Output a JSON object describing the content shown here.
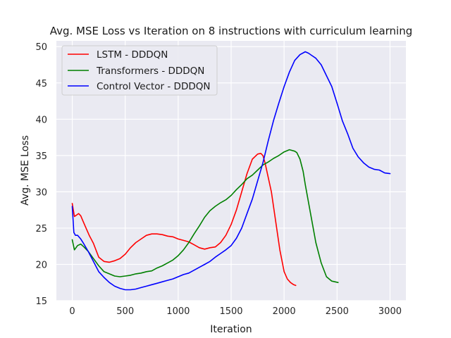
{
  "chart_data": {
    "type": "line",
    "title": "Avg. MSE Loss vs Iteration on 8 instructions with curriculum learning",
    "xlabel": "Iteration",
    "ylabel": "Avg. MSE Loss",
    "xlim": [
      -150,
      3150
    ],
    "ylim": [
      15,
      50.8
    ],
    "xticks": [
      0,
      500,
      1000,
      1500,
      2000,
      2500,
      3000
    ],
    "yticks": [
      15,
      20,
      25,
      30,
      35,
      40,
      45,
      50
    ],
    "grid": true,
    "legend_position": "top-left",
    "series": [
      {
        "name": "LSTM - DDDQN",
        "color": "#ff0000",
        "x": [
          0,
          20,
          40,
          60,
          80,
          100,
          130,
          160,
          200,
          250,
          300,
          350,
          400,
          450,
          500,
          550,
          600,
          650,
          700,
          750,
          800,
          850,
          900,
          950,
          1000,
          1050,
          1100,
          1150,
          1200,
          1250,
          1300,
          1350,
          1400,
          1450,
          1500,
          1550,
          1600,
          1650,
          1700,
          1750,
          1780,
          1800,
          1820,
          1850,
          1880,
          1900,
          1930,
          1960,
          2000,
          2030,
          2060,
          2090,
          2110
        ],
        "y": [
          28.4,
          26.6,
          26.8,
          27.0,
          26.7,
          26.0,
          25.0,
          24.0,
          22.9,
          21.0,
          20.4,
          20.3,
          20.5,
          20.8,
          21.4,
          22.3,
          23.0,
          23.5,
          24.0,
          24.2,
          24.2,
          24.1,
          23.9,
          23.8,
          23.5,
          23.3,
          23.1,
          22.7,
          22.3,
          22.1,
          22.3,
          22.4,
          23.0,
          24.0,
          25.5,
          27.5,
          30.0,
          32.5,
          34.5,
          35.2,
          35.3,
          35.0,
          34.0,
          32.0,
          30.0,
          28.0,
          25.0,
          22.0,
          19.0,
          18.0,
          17.5,
          17.2,
          17.1
        ]
      },
      {
        "name": "Transformers - DDDQN",
        "color": "#008000",
        "x": [
          0,
          20,
          50,
          80,
          110,
          150,
          200,
          250,
          300,
          350,
          400,
          450,
          500,
          550,
          600,
          650,
          700,
          750,
          800,
          850,
          900,
          950,
          1000,
          1050,
          1100,
          1150,
          1200,
          1250,
          1300,
          1350,
          1400,
          1450,
          1500,
          1550,
          1600,
          1650,
          1700,
          1750,
          1800,
          1850,
          1900,
          1950,
          2000,
          2050,
          2100,
          2120,
          2150,
          2180,
          2200,
          2250,
          2300,
          2350,
          2400,
          2450,
          2480,
          2510
        ],
        "y": [
          23.4,
          22.0,
          22.6,
          22.8,
          22.4,
          21.8,
          20.8,
          19.8,
          19.0,
          18.7,
          18.4,
          18.3,
          18.4,
          18.5,
          18.7,
          18.8,
          19.0,
          19.1,
          19.5,
          19.8,
          20.2,
          20.6,
          21.2,
          22.0,
          23.0,
          24.2,
          25.3,
          26.5,
          27.4,
          28.0,
          28.5,
          28.9,
          29.5,
          30.3,
          31.0,
          31.8,
          32.3,
          33.0,
          33.7,
          34.1,
          34.6,
          35.0,
          35.5,
          35.8,
          35.6,
          35.4,
          34.5,
          32.8,
          31.0,
          27.0,
          23.0,
          20.2,
          18.3,
          17.7,
          17.6,
          17.5
        ]
      },
      {
        "name": "Control Vector - DDDQN",
        "color": "#0000ff",
        "x": [
          0,
          15,
          30,
          50,
          80,
          110,
          150,
          200,
          250,
          300,
          350,
          400,
          450,
          500,
          550,
          600,
          650,
          700,
          750,
          800,
          850,
          900,
          950,
          1000,
          1050,
          1100,
          1150,
          1200,
          1250,
          1300,
          1350,
          1400,
          1450,
          1500,
          1550,
          1600,
          1650,
          1700,
          1750,
          1800,
          1850,
          1900,
          1950,
          2000,
          2050,
          2100,
          2150,
          2200,
          2230,
          2260,
          2300,
          2350,
          2400,
          2450,
          2500,
          2550,
          2600,
          2650,
          2700,
          2750,
          2800,
          2850,
          2900,
          2950,
          3000
        ],
        "y": [
          28.0,
          24.4,
          24.0,
          24.0,
          23.5,
          22.8,
          21.8,
          20.4,
          19.0,
          18.2,
          17.5,
          17.0,
          16.7,
          16.5,
          16.5,
          16.6,
          16.8,
          17.0,
          17.2,
          17.4,
          17.6,
          17.8,
          18.0,
          18.3,
          18.6,
          18.8,
          19.2,
          19.6,
          20.0,
          20.4,
          21.0,
          21.5,
          22.0,
          22.6,
          23.6,
          25.0,
          27.0,
          29.0,
          31.5,
          34.0,
          37.0,
          39.8,
          42.2,
          44.5,
          46.5,
          48.1,
          48.9,
          49.3,
          49.1,
          48.8,
          48.4,
          47.5,
          46.0,
          44.5,
          42.2,
          39.8,
          38.0,
          36.0,
          34.8,
          34.0,
          33.4,
          33.1,
          33.0,
          32.6,
          32.5
        ]
      }
    ]
  }
}
